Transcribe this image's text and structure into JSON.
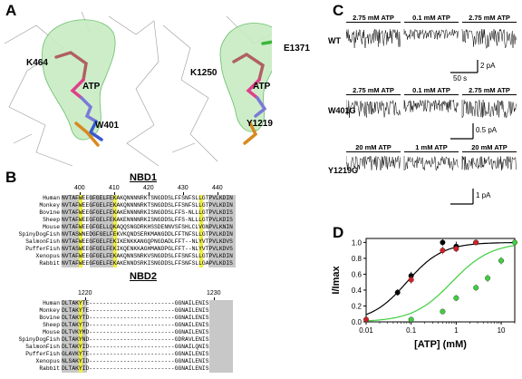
{
  "panels": {
    "a": "A",
    "b": "B",
    "c": "C",
    "d": "D"
  },
  "panelA": {
    "left_labels": {
      "lys": "K464",
      "atp": "ATP",
      "trp": "W401"
    },
    "right_labels": {
      "lys": "K1250",
      "glu": "E1371",
      "atp": "ATP",
      "tyr": "Y1219"
    }
  },
  "panelB": {
    "nbd1_title": "NBD1",
    "nbd2_title": "NBD2",
    "nbd1_ruler": [
      "400",
      "410",
      "420",
      "430",
      "440"
    ],
    "nbd2_ruler": [
      "1220",
      "1230"
    ],
    "species": [
      "Human",
      "Monkey",
      "Bovine",
      "Sheep",
      "Mouse",
      "SpinyDogFish",
      "SalmonFish",
      "PufferFish",
      "Xenopus",
      "Rabbit"
    ],
    "nbd1_seqs": [
      "NVTAFWEEGFGELFEKAKQNNNNRKTSNGDDSLFFSNFSLLGTPVLKDIN",
      "NVTAFWEEGFGELFEKAKQNNNNRKTSNGDDSLFFSNFSLLGTPVLKDIN",
      "NVTAFWEEGFGELFEKAKENNNNRKISNGDDSLFFS-NLLLGTPVLKDIS",
      "NVTAFWEEGFGELFEKAKENNNNRKISNGDDSLFFS-NLLLGTPVLKDIS",
      "NVTAFWEEGFGELLQKAQQSNGDRKHSSDENNVSFSHLCLVGNPVLKNIN",
      "NVTASWNEDGFGELFEKVKQNDSERKMANGDDLFFTNFSLLGTPVLKDIN",
      "NVTAFWEEGFGELFEKIKENKKANGQPNGDADLFFT--NLYVTPVLKDVS",
      "NVTASWEEGFGELFEKIKQENKKAGHMANDPGLFFT--NLYVTPVLKDVS",
      "NVTAFWEEGFGELFEKAKQNNSNRKVSNGDDSLFFSNFSLLGTPVLKDIN",
      "NVTAFWEEGFGELFEKAKENNDSRKISNGDDSLFFSNFSLLGAPVLKDIS"
    ],
    "nbd2_seqs": [
      "DLTAKYTE-------------------------GGNAILENIS",
      "DLTAKYTE-------------------------GGNAILENIS",
      "DLTAKYTD-------------------------GGNAILENIS",
      "DLTAKYTD-------------------------GGNAILENIS",
      "DLTVKYMD-------------------------GGNAILENIS",
      "DLTAKYND-------------------------GDRAVLENIS",
      "DLTAKYID-------------------------GGNAILQNIS",
      "GLAVKYTE-------------------------GGNAILENIS",
      "NLSAKYID-------------------------GGNAILENIS",
      "DLTAKYID-------------------------GGNAILENIS"
    ]
  },
  "panelC": {
    "rows": [
      {
        "name": "WT",
        "atp": [
          "2.75 mM ATP",
          "0.1 mM ATP",
          "2.75 mM ATP"
        ],
        "scale_time": "50 s",
        "scale_amp": "2 pA"
      },
      {
        "name": "W401G",
        "atp": [
          "2.75 mM ATP",
          "0.1 mM ATP",
          "2.75 mM ATP"
        ],
        "scale_amp": "0.5 pA"
      },
      {
        "name": "Y1219G",
        "atp": [
          "20 mM ATP",
          "1 mM ATP",
          "20 mM ATP"
        ],
        "scale_amp": "1 pA"
      }
    ]
  },
  "chart_data": {
    "type": "scatter",
    "xlabel": "[ATP] (mM)",
    "ylabel": "I/Imax",
    "xscale": "log",
    "xlim": [
      0.01,
      20
    ],
    "ylim": [
      0,
      1.05
    ],
    "xticks": [
      "0.01",
      "0.1",
      "1",
      "10"
    ],
    "yticks": [
      "0.0",
      "0.2",
      "0.4",
      "0.6",
      "0.8",
      "1.0"
    ],
    "series": [
      {
        "color": "#000000",
        "x": [
          0.05,
          0.1,
          0.5,
          1,
          2.75
        ],
        "y": [
          0.37,
          0.58,
          1.0,
          0.95,
          1.0
        ],
        "err": [
          0.04,
          0.05,
          0.04,
          0.06,
          0.02
        ]
      },
      {
        "color": "#d0202a",
        "x": [
          0.01,
          0.1,
          0.5,
          1,
          2.75
        ],
        "y": [
          0.03,
          0.53,
          0.9,
          0.92,
          1.0
        ],
        "err": [
          0.02,
          0.05,
          0.05,
          0.04,
          0.02
        ]
      },
      {
        "color": "#3fcf3f",
        "x": [
          0.1,
          0.5,
          1,
          2.75,
          5,
          10,
          20
        ],
        "y": [
          0.03,
          0.13,
          0.3,
          0.43,
          0.55,
          0.77,
          1.0
        ],
        "err": [
          0.02,
          0.03,
          0.04,
          0.04,
          0.05,
          0.05,
          0.02
        ]
      }
    ]
  }
}
